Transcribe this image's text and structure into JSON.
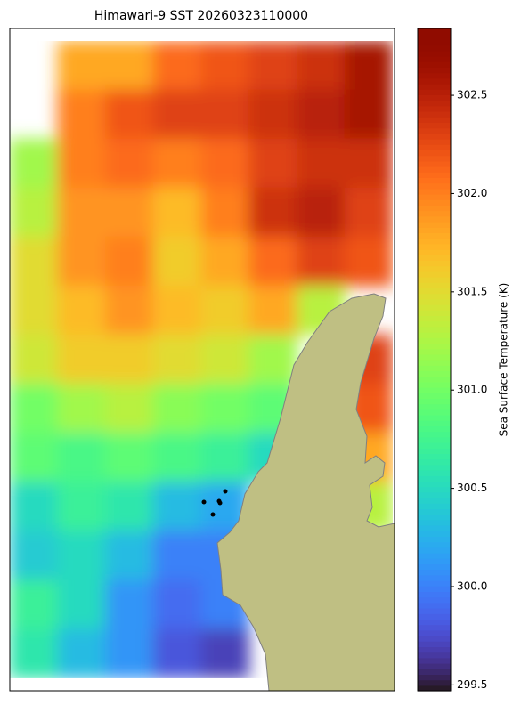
{
  "chart_data": {
    "type": "heatmap",
    "title": "Himawari-9 SST 20260323110000",
    "colorbar_label": "Sea Surface Temperature (K)",
    "clim": [
      299.47,
      302.84
    ],
    "colorbar_ticks": [
      299.5,
      {
        "value": 300.0,
        "label": "300.0"
      },
      300.5,
      {
        "value": 301.0,
        "label": "301.0"
      },
      301.5,
      {
        "value": 302.0,
        "label": "302.0"
      },
      302.5
    ],
    "values": [
      [
        null,
        301.8,
        301.8,
        302.1,
        302.2,
        302.3,
        302.4,
        302.6
      ],
      [
        null,
        302.0,
        302.2,
        302.3,
        302.3,
        302.4,
        302.5,
        302.6
      ],
      [
        301.2,
        302.0,
        302.1,
        302.0,
        302.1,
        302.3,
        302.4,
        302.4
      ],
      [
        301.3,
        301.9,
        301.9,
        301.7,
        302.0,
        302.4,
        302.5,
        302.3
      ],
      [
        301.5,
        301.9,
        302.0,
        301.6,
        301.8,
        302.1,
        302.3,
        302.2
      ],
      [
        301.5,
        301.7,
        301.9,
        301.7,
        301.6,
        301.8,
        301.3,
        null
      ],
      [
        301.4,
        301.6,
        301.6,
        301.5,
        301.4,
        301.2,
        null,
        302.3
      ],
      [
        301.0,
        301.2,
        301.3,
        301.1,
        301.0,
        300.9,
        null,
        302.2
      ],
      [
        300.9,
        300.8,
        300.9,
        300.8,
        300.7,
        300.5,
        null,
        301.8
      ],
      [
        300.5,
        300.7,
        300.6,
        300.3,
        300.2,
        null,
        null,
        301.3
      ],
      [
        300.4,
        300.5,
        300.3,
        300.0,
        300.0,
        null,
        null,
        null
      ],
      [
        300.7,
        300.5,
        300.1,
        299.9,
        300.0,
        null,
        null,
        null
      ],
      [
        300.6,
        300.3,
        300.1,
        299.8,
        299.7,
        null,
        null,
        null
      ]
    ]
  }
}
